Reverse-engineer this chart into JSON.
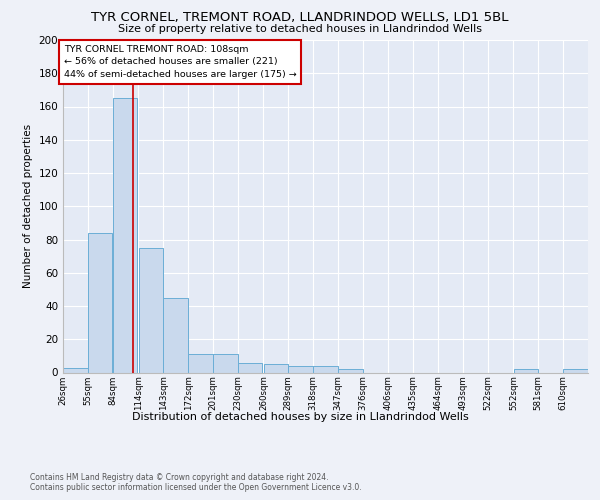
{
  "title1": "TYR CORNEL, TREMONT ROAD, LLANDRINDOD WELLS, LD1 5BL",
  "title2": "Size of property relative to detached houses in Llandrindod Wells",
  "xlabel": "Distribution of detached houses by size in Llandrindod Wells",
  "ylabel": "Number of detached properties",
  "footer1": "Contains HM Land Registry data © Crown copyright and database right 2024.",
  "footer2": "Contains public sector information licensed under the Open Government Licence v3.0.",
  "bin_labels": [
    "26sqm",
    "55sqm",
    "84sqm",
    "114sqm",
    "143sqm",
    "172sqm",
    "201sqm",
    "230sqm",
    "260sqm",
    "289sqm",
    "318sqm",
    "347sqm",
    "376sqm",
    "406sqm",
    "435sqm",
    "464sqm",
    "493sqm",
    "522sqm",
    "552sqm",
    "581sqm",
    "610sqm"
  ],
  "bar_values": [
    3,
    84,
    165,
    75,
    45,
    11,
    11,
    6,
    5,
    4,
    4,
    2,
    0,
    0,
    0,
    0,
    0,
    0,
    2,
    0,
    2
  ],
  "bar_color": "#c9d9ed",
  "bar_edge_color": "#6baed6",
  "property_line_x": 108,
  "bin_starts": [
    26,
    55,
    84,
    114,
    143,
    172,
    201,
    230,
    260,
    289,
    318,
    347,
    376,
    406,
    435,
    464,
    493,
    522,
    552,
    581,
    610
  ],
  "bin_width": 29,
  "annotation_title": "TYR CORNEL TREMONT ROAD: 108sqm",
  "annotation_line1": "← 56% of detached houses are smaller (221)",
  "annotation_line2": "44% of semi-detached houses are larger (175) →",
  "ylim": [
    0,
    200
  ],
  "yticks": [
    0,
    20,
    40,
    60,
    80,
    100,
    120,
    140,
    160,
    180,
    200
  ],
  "background_color": "#eef1f8",
  "plot_bg_color": "#e4eaf5",
  "grid_color": "#ffffff",
  "red_line_color": "#cc0000",
  "annotation_box_color": "#ffffff",
  "annotation_box_edge": "#cc0000"
}
